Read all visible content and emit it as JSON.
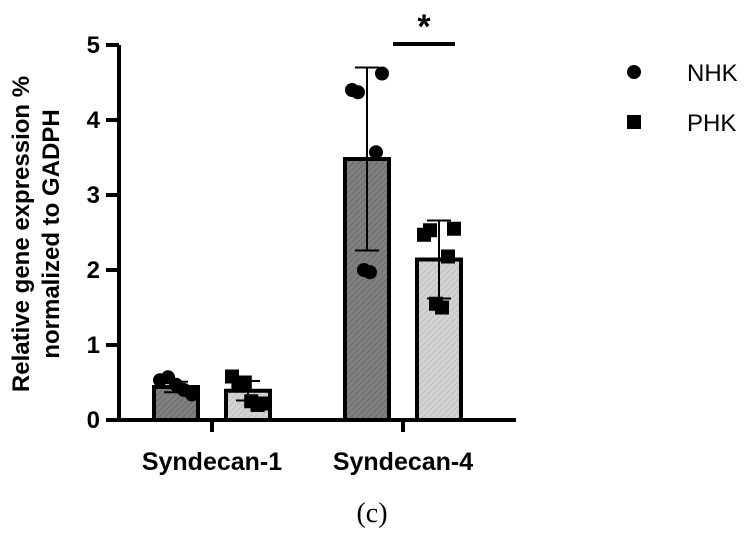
{
  "chart_data": {
    "type": "bar",
    "title": "",
    "xlabel": "",
    "ylabel_lines": [
      "Relative gene expression %",
      "normalized to GADPH"
    ],
    "ylim": [
      0,
      5
    ],
    "yticks": [
      0,
      1,
      2,
      3,
      4,
      5
    ],
    "categories": [
      "Syndecan-1",
      "Syndecan-4"
    ],
    "series": [
      {
        "name": "NHK",
        "marker": "circle",
        "color": "#808080",
        "values": [
          0.44,
          3.48
        ],
        "sd": [
          0.07,
          1.22
        ],
        "points": [
          [
            0.53,
            0.57,
            0.47,
            0.4,
            0.34
          ],
          [
            4.4,
            4.62,
            4.37,
            3.57,
            2.0,
            1.97
          ]
        ]
      },
      {
        "name": "PHK",
        "marker": "square",
        "color": "#d3d3d3",
        "values": [
          0.39,
          2.14
        ],
        "sd": [
          0.13,
          0.52
        ],
        "points": [
          [
            0.58,
            0.5,
            0.5,
            0.25,
            0.2,
            0.22
          ],
          [
            2.47,
            2.55,
            2.53,
            2.18,
            1.55,
            1.5
          ]
        ]
      }
    ],
    "annotations": [
      {
        "text": "*",
        "between": [
          "NHK",
          "PHK"
        ],
        "category": "Syndecan-4"
      }
    ],
    "legend": {
      "position": "top-right"
    },
    "grid": false,
    "caption": "(c)"
  }
}
